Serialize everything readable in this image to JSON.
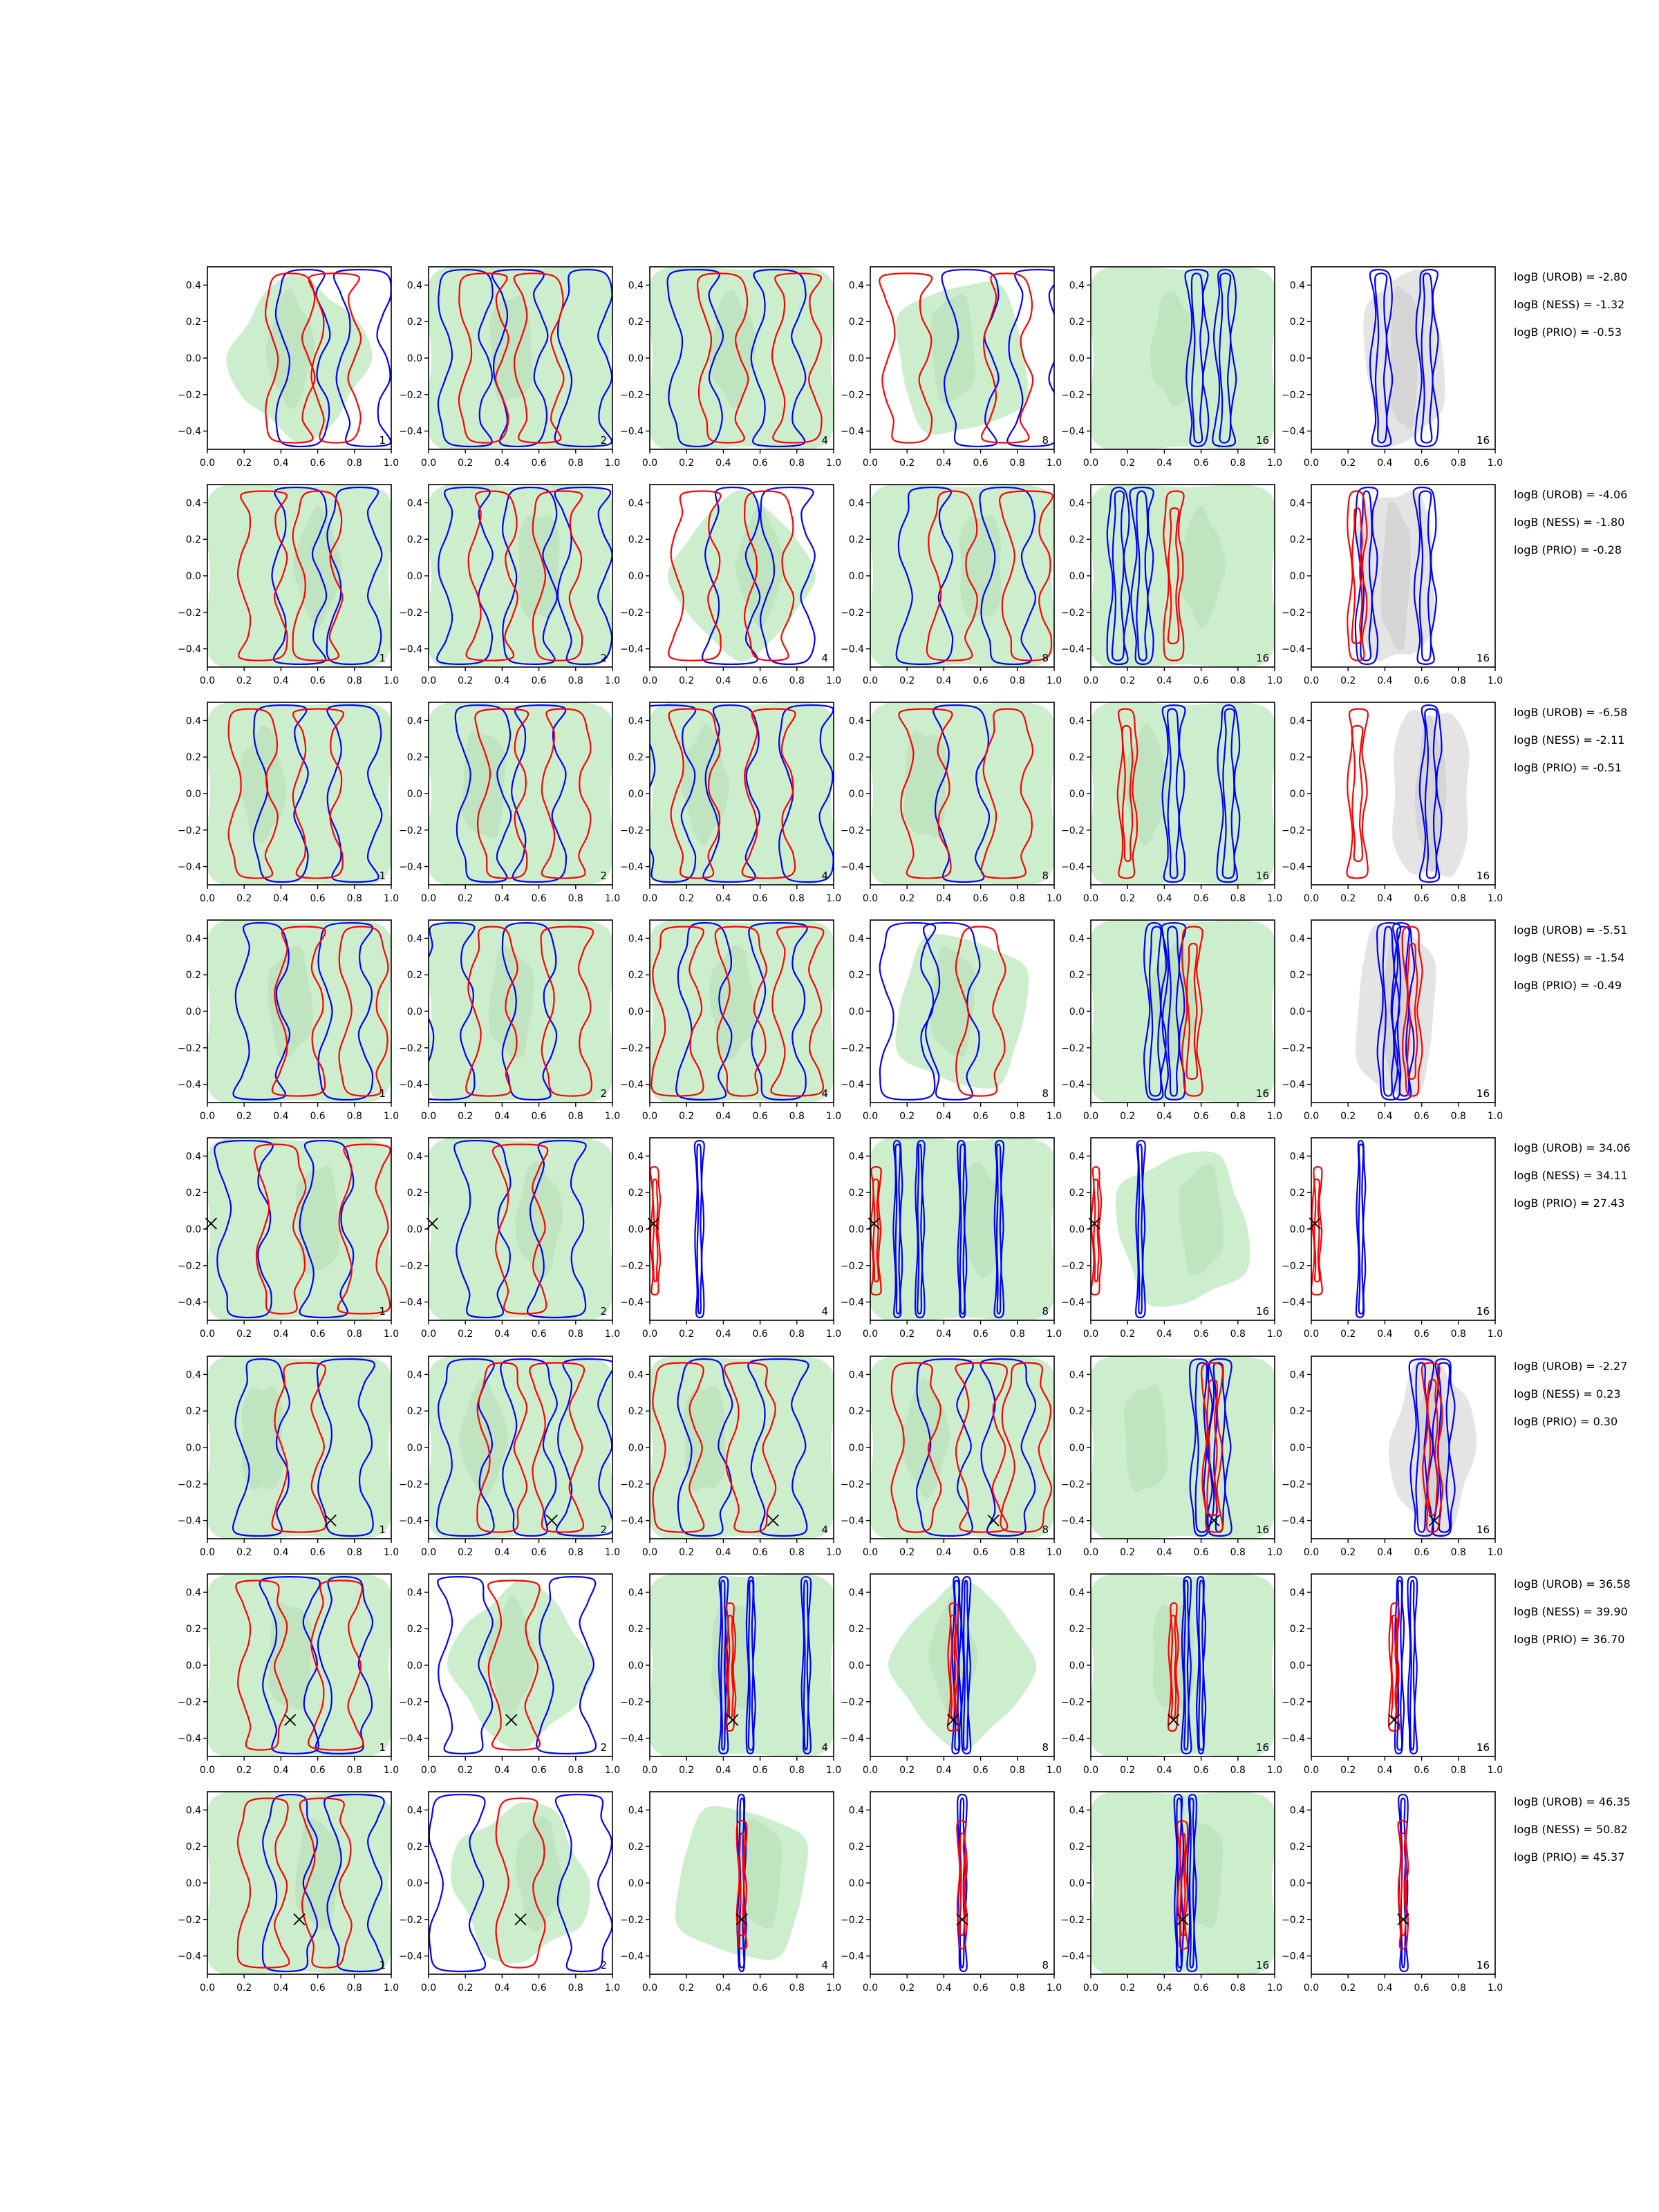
{
  "figure": {
    "rows": 8,
    "cols": 6,
    "axes": {
      "xlim": [
        0,
        1
      ],
      "ylim": [
        -0.5,
        0.5
      ],
      "xticks": [
        0.0,
        0.2,
        0.4,
        0.6,
        0.8,
        1.0
      ],
      "yticks": [
        0.4,
        0.2,
        0.0,
        -0.2,
        -0.4
      ],
      "xticklabels": [
        "0.0",
        "0.2",
        "0.4",
        "0.6",
        "0.8",
        "1.0"
      ],
      "yticklabels": [
        "0.4",
        "0.2",
        "0.0",
        "−0.2",
        "−0.4"
      ]
    },
    "column_labels": [
      "1",
      "2",
      "4",
      "8",
      "16",
      "16"
    ],
    "colors": {
      "green_fill": "#cdeecd",
      "green_dark": "#b6dbb6",
      "gray_fill": "#e4e4e4",
      "gray_dark": "#cfcfcf",
      "blue": "#0000ff",
      "red": "#ff0000",
      "marker": "#000000"
    }
  },
  "chart_data": {
    "type": "contour",
    "title": "",
    "xlabel": "",
    "ylabel": "",
    "xlim": [
      0,
      1
    ],
    "ylim": [
      -0.5,
      0.5
    ],
    "grid": false,
    "legend": "none",
    "rows": [
      {
        "logB": {
          "UROB": "logB (UROB) = -2.80",
          "NESS": "logB (NESS) = -1.32",
          "PRIO": "logB (PRIO) = -0.53"
        },
        "marker": null,
        "panels": [
          {
            "label": "1",
            "style": "grid",
            "green": "partial",
            "blue_cols": [
              0.52,
              0.85
            ],
            "red_cols": [
              0.45,
              0.7
            ]
          },
          {
            "label": "2",
            "style": "grid",
            "green": "full",
            "blue_cols": [
              0.2,
              0.5,
              0.85
            ],
            "red_cols": [
              0.3,
              0.6
            ]
          },
          {
            "label": "4",
            "style": "grid",
            "green": "full",
            "blue_cols": [
              0.25,
              0.7
            ],
            "red_cols": [
              0.4,
              0.8
            ]
          },
          {
            "label": "8",
            "style": "grid",
            "green": "partial",
            "blue_cols": [
              0.55,
              0.9
            ],
            "red_cols": [
              0.2,
              0.75
            ]
          },
          {
            "label": "16",
            "style": "vertical",
            "green": "full",
            "blue_cols": [
              0.58,
              0.73
            ],
            "red_cols": []
          },
          {
            "label": "16",
            "style": "vertical",
            "green": "gray",
            "blue_cols": [
              0.38,
              0.63
            ],
            "red_cols": []
          }
        ]
      },
      {
        "logB": {
          "UROB": "logB (UROB) = -4.06",
          "NESS": "logB (NESS) = -1.80",
          "PRIO": "logB (PRIO) = -0.28"
        },
        "marker": null,
        "panels": [
          {
            "label": "1",
            "style": "grid",
            "green": "full",
            "blue_cols": [
              0.5,
              0.8
            ],
            "red_cols": [
              0.3,
              0.6
            ]
          },
          {
            "label": "2",
            "style": "grid",
            "green": "full",
            "blue_cols": [
              0.2,
              0.55,
              0.85
            ],
            "red_cols": [
              0.35,
              0.7
            ]
          },
          {
            "label": "4",
            "style": "grid",
            "green": "partial",
            "blue_cols": [
              0.45,
              0.75
            ],
            "red_cols": [
              0.25,
              0.65
            ]
          },
          {
            "label": "8",
            "style": "grid",
            "green": "full",
            "blue_cols": [
              0.3,
              0.75
            ],
            "red_cols": [
              0.45,
              0.85
            ]
          },
          {
            "label": "16",
            "style": "vertical",
            "green": "full",
            "blue_cols": [
              0.15,
              0.28
            ],
            "red_cols": [
              0.45
            ]
          },
          {
            "label": "16",
            "style": "vertical",
            "green": "gray",
            "blue_cols": [
              0.3,
              0.62
            ],
            "red_cols": [
              0.25
            ]
          }
        ]
      },
      {
        "logB": {
          "UROB": "logB (UROB) = -6.58",
          "NESS": "logB (NESS) = -2.11",
          "PRIO": "logB (PRIO) = -0.51"
        },
        "marker": null,
        "panels": [
          {
            "label": "1",
            "style": "grid",
            "green": "full",
            "blue_cols": [
              0.4,
              0.8
            ],
            "red_cols": [
              0.25,
              0.6
            ]
          },
          {
            "label": "2",
            "style": "grid",
            "green": "full",
            "blue_cols": [
              0.3,
              0.6
            ],
            "red_cols": [
              0.4,
              0.75
            ]
          },
          {
            "label": "4",
            "style": "grid",
            "green": "full",
            "blue_cols": [
              0.1,
              0.45,
              0.85
            ],
            "red_cols": [
              0.25,
              0.65
            ]
          },
          {
            "label": "8",
            "style": "grid",
            "green": "full",
            "blue_cols": [
              0.5
            ],
            "red_cols": [
              0.3,
              0.75
            ]
          },
          {
            "label": "16",
            "style": "vertical",
            "green": "full",
            "blue_cols": [
              0.45,
              0.75
            ],
            "red_cols": [
              0.2
            ]
          },
          {
            "label": "16",
            "style": "vertical",
            "green": "gray",
            "blue_cols": [
              0.65
            ],
            "red_cols": [
              0.25
            ]
          }
        ]
      },
      {
        "logB": {
          "UROB": "logB (UROB) = -5.51",
          "NESS": "logB (NESS) = -1.54",
          "PRIO": "logB (PRIO) = -0.49"
        },
        "marker": null,
        "panels": [
          {
            "label": "1",
            "style": "grid",
            "green": "full",
            "blue_cols": [
              0.3,
              0.75
            ],
            "red_cols": [
              0.5,
              0.85
            ]
          },
          {
            "label": "2",
            "style": "grid",
            "green": "full",
            "blue_cols": [
              0.1,
              0.55
            ],
            "red_cols": [
              0.35,
              0.75
            ]
          },
          {
            "label": "4",
            "style": "grid",
            "green": "full",
            "blue_cols": [
              0.3,
              0.7
            ],
            "red_cols": [
              0.15,
              0.5,
              0.8
            ]
          },
          {
            "label": "8",
            "style": "grid",
            "green": "partial",
            "blue_cols": [
              0.2,
              0.45
            ],
            "red_cols": [
              0.6
            ]
          },
          {
            "label": "16",
            "style": "vertical",
            "green": "full",
            "blue_cols": [
              0.35,
              0.45
            ],
            "red_cols": [
              0.55
            ]
          },
          {
            "label": "16",
            "style": "vertical",
            "green": "gray",
            "blue_cols": [
              0.42,
              0.5
            ],
            "red_cols": [
              0.55
            ]
          }
        ]
      },
      {
        "logB": {
          "UROB": "logB (UROB) = 34.06",
          "NESS": "logB (NESS) = 34.11",
          "PRIO": "logB (PRIO) = 27.43"
        },
        "marker": {
          "x": 0.02,
          "y": 0.03
        },
        "panels": [
          {
            "label": "1",
            "style": "grid",
            "green": "full",
            "blue_cols": [
              0.2,
              0.65
            ],
            "red_cols": [
              0.4,
              0.85
            ]
          },
          {
            "label": "2",
            "style": "grid",
            "green": "full",
            "blue_cols": [
              0.3,
              0.7
            ],
            "red_cols": [
              0.5
            ]
          },
          {
            "label": "4",
            "style": "narrow",
            "green": "none",
            "blue_cols": [
              0.27
            ],
            "red_cols": [
              0.03
            ]
          },
          {
            "label": "8",
            "style": "narrow",
            "green": "full",
            "blue_cols": [
              0.15,
              0.27,
              0.5,
              0.7
            ],
            "red_cols": [
              0.03
            ]
          },
          {
            "label": "16",
            "style": "narrow",
            "green": "partial",
            "blue_cols": [
              0.27
            ],
            "red_cols": [
              0.03
            ]
          },
          {
            "label": "16",
            "style": "narrow",
            "green": "none",
            "blue_cols": [
              0.27
            ],
            "red_cols": [
              0.03
            ]
          }
        ]
      },
      {
        "logB": {
          "UROB": "logB (UROB) = -2.27",
          "NESS": "logB (NESS) = 0.23",
          "PRIO": "logB (PRIO) = 0.30"
        },
        "marker": {
          "x": 0.67,
          "y": -0.4
        },
        "panels": [
          {
            "label": "1",
            "style": "grid",
            "green": "full",
            "blue_cols": [
              0.3,
              0.75
            ],
            "red_cols": [
              0.5
            ]
          },
          {
            "label": "2",
            "style": "grid",
            "green": "full",
            "blue_cols": [
              0.2,
              0.55,
              0.85
            ],
            "red_cols": [
              0.4,
              0.7
            ]
          },
          {
            "label": "4",
            "style": "grid",
            "green": "full",
            "blue_cols": [
              0.3,
              0.7
            ],
            "red_cols": [
              0.15,
              0.55
            ]
          },
          {
            "label": "8",
            "style": "grid",
            "green": "full",
            "blue_cols": [
              0.4,
              0.75
            ],
            "red_cols": [
              0.25,
              0.6,
              0.85
            ]
          },
          {
            "label": "16",
            "style": "vertical",
            "green": "full",
            "blue_cols": [
              0.6,
              0.7
            ],
            "red_cols": [
              0.66
            ]
          },
          {
            "label": "16",
            "style": "vertical",
            "green": "gray",
            "blue_cols": [
              0.6,
              0.72
            ],
            "red_cols": [
              0.66
            ]
          }
        ]
      },
      {
        "logB": {
          "UROB": "logB (UROB) = 36.58",
          "NESS": "logB (NESS) = 39.90",
          "PRIO": "logB (PRIO) = 36.70"
        },
        "marker": {
          "x": 0.45,
          "y": -0.3
        },
        "panels": [
          {
            "label": "1",
            "style": "grid",
            "green": "full",
            "blue_cols": [
              0.45,
              0.75
            ],
            "red_cols": [
              0.3,
              0.7
            ]
          },
          {
            "label": "2",
            "style": "grid",
            "green": "partial",
            "blue_cols": [
              0.2,
              0.75
            ],
            "red_cols": [
              0.46
            ]
          },
          {
            "label": "4",
            "style": "narrow",
            "green": "full",
            "blue_cols": [
              0.4,
              0.55,
              0.85
            ],
            "red_cols": [
              0.44
            ]
          },
          {
            "label": "8",
            "style": "narrow",
            "green": "partial",
            "blue_cols": [
              0.47,
              0.52
            ],
            "red_cols": [
              0.45
            ]
          },
          {
            "label": "16",
            "style": "narrow",
            "green": "full",
            "blue_cols": [
              0.52,
              0.6
            ],
            "red_cols": [
              0.45
            ]
          },
          {
            "label": "16",
            "style": "narrow",
            "green": "none",
            "blue_cols": [
              0.48,
              0.55
            ],
            "red_cols": [
              0.45
            ]
          }
        ]
      },
      {
        "logB": {
          "UROB": "logB (UROB) = 46.35",
          "NESS": "logB (NESS) = 50.82",
          "PRIO": "logB (PRIO) = 45.37"
        },
        "marker": {
          "x": 0.5,
          "y": -0.2
        },
        "panels": [
          {
            "label": "1",
            "style": "grid",
            "green": "full",
            "blue_cols": [
              0.45,
              0.8
            ],
            "red_cols": [
              0.3,
              0.65
            ]
          },
          {
            "label": "2",
            "style": "grid",
            "green": "partial",
            "blue_cols": [
              0.15,
              0.85
            ],
            "red_cols": [
              0.5
            ]
          },
          {
            "label": "4",
            "style": "narrow",
            "green": "partial",
            "blue_cols": [
              0.5
            ],
            "red_cols": [
              0.5
            ]
          },
          {
            "label": "8",
            "style": "narrow",
            "green": "none",
            "blue_cols": [
              0.5
            ],
            "red_cols": [
              0.5
            ]
          },
          {
            "label": "16",
            "style": "narrow",
            "green": "full",
            "blue_cols": [
              0.48,
              0.55
            ],
            "red_cols": [
              0.5
            ]
          },
          {
            "label": "16",
            "style": "narrow",
            "green": "none",
            "blue_cols": [
              0.5
            ],
            "red_cols": [
              0.5
            ]
          }
        ]
      }
    ]
  }
}
